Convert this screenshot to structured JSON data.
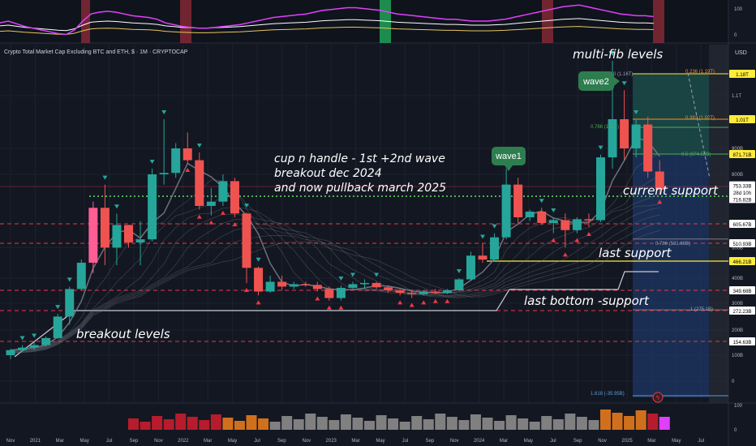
{
  "header": {
    "title": "Crypto Total Market Cap Excluding BTC and ETH, $ · 1M · CRYPTOCAP",
    "currency": "USD"
  },
  "annotations": {
    "main_text": [
      "cup n handle - 1st +2nd wave",
      "breakout dec 2024",
      "and now pullback march 2025"
    ],
    "multi_fib": "multi-fib levels",
    "current_support": "current support",
    "last_support": "last support",
    "last_bottom": "last bottom -support",
    "breakout_levels": "breakout levels",
    "wave1": "wave1",
    "wave2": "wave2"
  },
  "fib_labels": [
    {
      "text": "0.236 (1.19T)",
      "value": 1190
    },
    {
      "text": "0.382 (1.02T)",
      "value": 1020
    },
    {
      "text": "0.5 (874.58B)",
      "value": 874.58
    },
    {
      "text": "0.786 (531.68B)",
      "value": 531.68
    },
    {
      "text": "1 (275.1B)",
      "value": 275.1
    },
    {
      "text": "1.618 (-35.95B)",
      "value": -35.95
    }
  ],
  "fib_top_partial": "0 (1.16T)",
  "fib_786_partial": "0.786 (1.0…)",
  "chart_data": {
    "type": "candlestick",
    "title": "Crypto Total Market Cap Excluding BTC and ETH, $ · 1M · CRYPTOCAP",
    "ylabel": "USD",
    "ylim": [
      -100,
      1350
    ],
    "y_ticks": [
      {
        "label": "1.1T",
        "value": 1100
      },
      {
        "label": "900B",
        "value": 900
      },
      {
        "label": "800B",
        "value": 800
      },
      {
        "label": "500B",
        "value": 500
      },
      {
        "label": "400B",
        "value": 400
      },
      {
        "label": "300B",
        "value": 300
      },
      {
        "label": "200B",
        "value": 200
      },
      {
        "label": "100B",
        "value": 100
      },
      {
        "label": "0",
        "value": 0
      }
    ],
    "price_tags": [
      {
        "text": "1.18T",
        "value": 1180,
        "bg": "#ffeb3b",
        "fg": "#000000"
      },
      {
        "text": "1.01T",
        "value": 1010,
        "bg": "#ffeb3b",
        "fg": "#000000"
      },
      {
        "text": "871.71B",
        "value": 871.71,
        "bg": "#ffeb3b",
        "fg": "#000000"
      },
      {
        "text": "753.33B",
        "value": 753.33,
        "bg": "#ffffff",
        "fg": "#000000"
      },
      {
        "text": "28d 10h",
        "value": 740,
        "bg": "#ffffff",
        "fg": "#000000"
      },
      {
        "text": "716.82B",
        "value": 716.82,
        "bg": "#ffffff",
        "fg": "#000000"
      },
      {
        "text": "605.67B",
        "value": 605.67,
        "bg": "#ffffff",
        "fg": "#000000"
      },
      {
        "text": "510.93B",
        "value": 510.93,
        "bg": "#ffffff",
        "fg": "#000000"
      },
      {
        "text": "466.21B",
        "value": 466.21,
        "bg": "#ffeb3b",
        "fg": "#000000"
      },
      {
        "text": "349.68B",
        "value": 349.68,
        "bg": "#ffffff",
        "fg": "#000000"
      },
      {
        "text": "272.23B",
        "value": 272.23,
        "bg": "#ffffff",
        "fg": "#000000"
      },
      {
        "text": "154.63B",
        "value": 154.63,
        "bg": "#ffffff",
        "fg": "#000000"
      }
    ],
    "x_labels": [
      "Nov",
      "2021",
      "Mar",
      "May",
      "Jul",
      "Sep",
      "Nov",
      "2022",
      "Mar",
      "May",
      "Jul",
      "Sep",
      "Nov",
      "2023",
      "Mar",
      "May",
      "Jul",
      "Sep",
      "Nov",
      "2024",
      "Mar",
      "May",
      "Jul",
      "Sep",
      "Nov",
      "2025",
      "Mar",
      "May",
      "Jul"
    ],
    "candles": [
      {
        "o": 100,
        "h": 125,
        "l": 85,
        "c": 120
      },
      {
        "o": 120,
        "h": 140,
        "l": 115,
        "c": 130
      },
      {
        "o": 130,
        "h": 150,
        "l": 120,
        "c": 140
      },
      {
        "o": 140,
        "h": 175,
        "l": 135,
        "c": 168
      },
      {
        "o": 168,
        "h": 260,
        "l": 165,
        "c": 250
      },
      {
        "o": 250,
        "h": 365,
        "l": 220,
        "c": 355
      },
      {
        "o": 355,
        "h": 470,
        "l": 350,
        "c": 460
      },
      {
        "o": 460,
        "h": 720,
        "l": 420,
        "c": 690
      },
      {
        "o": 690,
        "h": 770,
        "l": 450,
        "c": 500
      },
      {
        "o": 500,
        "h": 660,
        "l": 450,
        "c": 600
      },
      {
        "o": 600,
        "h": 600,
        "l": 500,
        "c": 515
      },
      {
        "o": 515,
        "h": 620,
        "l": 450,
        "c": 530
      },
      {
        "o": 530,
        "h": 820,
        "l": 520,
        "c": 800
      },
      {
        "o": 800,
        "h": 1010,
        "l": 770,
        "c": 805
      },
      {
        "o": 805,
        "h": 920,
        "l": 790,
        "c": 900
      },
      {
        "o": 900,
        "h": 960,
        "l": 840,
        "c": 850
      },
      {
        "o": 850,
        "h": 880,
        "l": 680,
        "c": 700
      },
      {
        "o": 700,
        "h": 760,
        "l": 650,
        "c": 720
      },
      {
        "o": 720,
        "h": 800,
        "l": 700,
        "c": 780
      },
      {
        "o": 780,
        "h": 790,
        "l": 640,
        "c": 660
      },
      {
        "o": 660,
        "h": 665,
        "l": 380,
        "c": 440
      },
      {
        "o": 440,
        "h": 445,
        "l": 330,
        "c": 345
      },
      {
        "o": 345,
        "h": 410,
        "l": 340,
        "c": 385
      },
      {
        "o": 385,
        "h": 410,
        "l": 350,
        "c": 365
      },
      {
        "o": 365,
        "h": 385,
        "l": 355,
        "c": 375
      },
      {
        "o": 375,
        "h": 385,
        "l": 365,
        "c": 372
      },
      {
        "o": 372,
        "h": 385,
        "l": 345,
        "c": 355
      },
      {
        "o": 355,
        "h": 365,
        "l": 310,
        "c": 320
      },
      {
        "o": 320,
        "h": 370,
        "l": 310,
        "c": 360
      },
      {
        "o": 360,
        "h": 385,
        "l": 355,
        "c": 375
      },
      {
        "o": 375,
        "h": 395,
        "l": 355,
        "c": 380
      },
      {
        "o": 380,
        "h": 385,
        "l": 355,
        "c": 362
      },
      {
        "o": 362,
        "h": 370,
        "l": 340,
        "c": 350
      },
      {
        "o": 350,
        "h": 355,
        "l": 330,
        "c": 340
      },
      {
        "o": 340,
        "h": 350,
        "l": 320,
        "c": 335
      },
      {
        "o": 335,
        "h": 350,
        "l": 330,
        "c": 345
      },
      {
        "o": 345,
        "h": 355,
        "l": 335,
        "c": 340
      },
      {
        "o": 340,
        "h": 355,
        "l": 335,
        "c": 350
      },
      {
        "o": 350,
        "h": 400,
        "l": 345,
        "c": 395
      },
      {
        "o": 395,
        "h": 490,
        "l": 390,
        "c": 480
      },
      {
        "o": 480,
        "h": 510,
        "l": 460,
        "c": 470
      },
      {
        "o": 470,
        "h": 560,
        "l": 465,
        "c": 540
      },
      {
        "o": 540,
        "h": 820,
        "l": 530,
        "c": 770
      },
      {
        "o": 770,
        "h": 790,
        "l": 610,
        "c": 640
      },
      {
        "o": 640,
        "h": 680,
        "l": 620,
        "c": 670
      },
      {
        "o": 670,
        "h": 690,
        "l": 600,
        "c": 610
      },
      {
        "o": 610,
        "h": 640,
        "l": 560,
        "c": 625
      },
      {
        "o": 625,
        "h": 660,
        "l": 500,
        "c": 575
      },
      {
        "o": 575,
        "h": 640,
        "l": 560,
        "c": 630
      },
      {
        "o": 630,
        "h": 660,
        "l": 590,
        "c": 625
      },
      {
        "o": 625,
        "h": 870,
        "l": 615,
        "c": 860
      },
      {
        "o": 860,
        "h": 1260,
        "l": 820,
        "c": 1010
      },
      {
        "o": 1010,
        "h": 1120,
        "l": 850,
        "c": 900
      },
      {
        "o": 900,
        "h": 1010,
        "l": 860,
        "c": 990
      },
      {
        "o": 990,
        "h": 1020,
        "l": 790,
        "c": 810
      },
      {
        "o": 810,
        "h": 850,
        "l": 740,
        "c": 755
      }
    ]
  }
}
